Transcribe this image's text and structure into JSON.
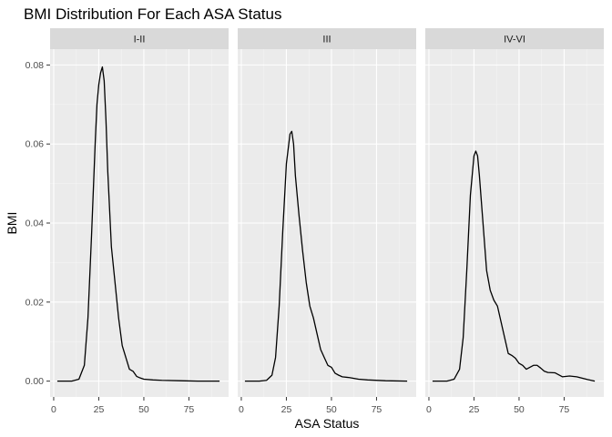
{
  "chart_data": {
    "type": "line",
    "title": "BMI Distribution For Each ASA Status",
    "xlabel": "ASA Status",
    "ylabel": "BMI",
    "xlim": [
      -2,
      97
    ],
    "ylim": [
      -0.004,
      0.084
    ],
    "xticks": [
      0,
      25,
      50,
      75
    ],
    "yticks": [
      0.0,
      0.02,
      0.04,
      0.06,
      0.08
    ],
    "ytick_labels": [
      "0.00",
      "0.02",
      "0.04",
      "0.06",
      "0.08"
    ],
    "grid": true,
    "legend": "none",
    "facets": [
      {
        "label": "I-II",
        "x": [
          2,
          10,
          14,
          17,
          19,
          21,
          23,
          24,
          25,
          26,
          27,
          28,
          29,
          30,
          32,
          34,
          36,
          38,
          40,
          42,
          44,
          46,
          48,
          50,
          55,
          60,
          70,
          80,
          92
        ],
        "y": [
          0.0,
          0.0,
          0.0005,
          0.004,
          0.016,
          0.037,
          0.06,
          0.07,
          0.075,
          0.078,
          0.0795,
          0.076,
          0.066,
          0.053,
          0.034,
          0.025,
          0.016,
          0.009,
          0.006,
          0.003,
          0.0025,
          0.0012,
          0.0008,
          0.0005,
          0.0003,
          0.0002,
          0.0001,
          0.0,
          0.0
        ]
      },
      {
        "label": "III",
        "x": [
          2,
          10,
          14,
          17,
          19,
          21,
          23,
          25,
          27,
          28,
          29,
          30,
          32,
          34,
          36,
          38,
          40,
          42,
          44,
          46,
          48,
          50,
          52,
          54,
          56,
          60,
          65,
          70,
          80,
          92
        ],
        "y": [
          0.0,
          0.0,
          0.0002,
          0.0015,
          0.006,
          0.019,
          0.038,
          0.055,
          0.0625,
          0.0632,
          0.06,
          0.052,
          0.042,
          0.033,
          0.025,
          0.019,
          0.016,
          0.012,
          0.008,
          0.006,
          0.004,
          0.0035,
          0.002,
          0.0015,
          0.0011,
          0.0009,
          0.0005,
          0.0003,
          0.0001,
          0.0
        ]
      },
      {
        "label": "IV-VI",
        "x": [
          2,
          10,
          14,
          17,
          19,
          21,
          23,
          25,
          26,
          27,
          28,
          30,
          32,
          34,
          36,
          38,
          40,
          42,
          44,
          46,
          48,
          50,
          52,
          54,
          56,
          58,
          60,
          62,
          64,
          66,
          70,
          74,
          78,
          82,
          88,
          92
        ],
        "y": [
          0.0,
          0.0,
          0.0005,
          0.003,
          0.011,
          0.028,
          0.047,
          0.057,
          0.0582,
          0.057,
          0.052,
          0.04,
          0.028,
          0.023,
          0.0205,
          0.019,
          0.015,
          0.011,
          0.007,
          0.0065,
          0.0058,
          0.0045,
          0.004,
          0.003,
          0.0035,
          0.004,
          0.004,
          0.0033,
          0.0025,
          0.0022,
          0.0021,
          0.0011,
          0.0013,
          0.0011,
          0.0004,
          0.0
        ]
      }
    ]
  }
}
